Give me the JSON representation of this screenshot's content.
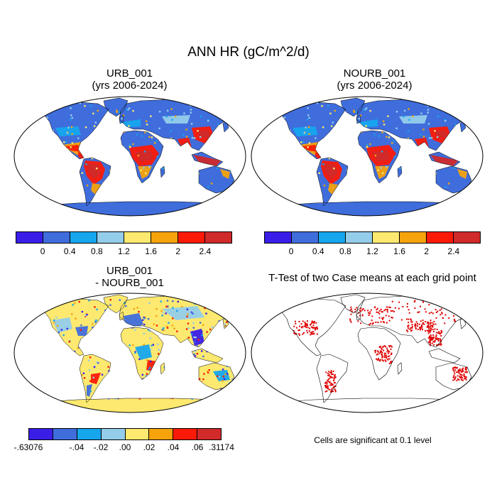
{
  "figure": {
    "title": "ANN HR (gC/m^2/d)",
    "panels": [
      {
        "id": "urb",
        "title_line1": "URB_001",
        "title_line2": "(yrs 2006-2024)"
      },
      {
        "id": "nourb",
        "title_line1": "NOURB_001",
        "title_line2": "(yrs 2006-2024)"
      },
      {
        "id": "diff",
        "title_line1": "URB_001",
        "title_line2": "- NOURB_001"
      },
      {
        "id": "ttest",
        "title_line1": "T-Test of two Case means at each grid point",
        "title_line2": ""
      }
    ],
    "ttest_note": "Cells are significant at 0.1 level"
  },
  "chart_data": [
    {
      "type": "heatmap",
      "title": "URB_001",
      "subtitle": "(yrs 2006-2024)",
      "projection": "Robinson",
      "colorbar_colors": [
        "#3a1ee8",
        "#3f6ddc",
        "#15a6ee",
        "#94cdea",
        "#fde96f",
        "#f6a30c",
        "#fb1a07",
        "#d02a2a"
      ],
      "colorbar_ticks": [
        "0",
        "0.4",
        "0.8",
        "1.2",
        "1.6",
        "2",
        "2.4"
      ]
    },
    {
      "type": "heatmap",
      "title": "NOURB_001",
      "subtitle": "(yrs 2006-2024)",
      "projection": "Robinson",
      "colorbar_colors": [
        "#3a1ee8",
        "#3f6ddc",
        "#15a6ee",
        "#94cdea",
        "#fde96f",
        "#f6a30c",
        "#fb1a07",
        "#d02a2a"
      ],
      "colorbar_ticks": [
        "0",
        "0.4",
        "0.8",
        "1.2",
        "1.6",
        "2",
        "2.4"
      ]
    },
    {
      "type": "heatmap",
      "title": "URB_001",
      "subtitle": "- NOURB_001",
      "projection": "Robinson",
      "colorbar_colors": [
        "#3a1ee8",
        "#3f6ddc",
        "#15a6ee",
        "#94cdea",
        "#fde96f",
        "#f6a30c",
        "#fb1a07",
        "#d02a2a"
      ],
      "colorbar_ticks": [
        "-.63076",
        "-.04",
        "-.02",
        ".00",
        ".02",
        ".04",
        ".06",
        ".31174"
      ]
    },
    {
      "type": "heatmap",
      "title": "T-Test of two Case means at each grid point",
      "projection": "Robinson",
      "significance_level": 0.1,
      "marker_color": "#e00000"
    }
  ]
}
